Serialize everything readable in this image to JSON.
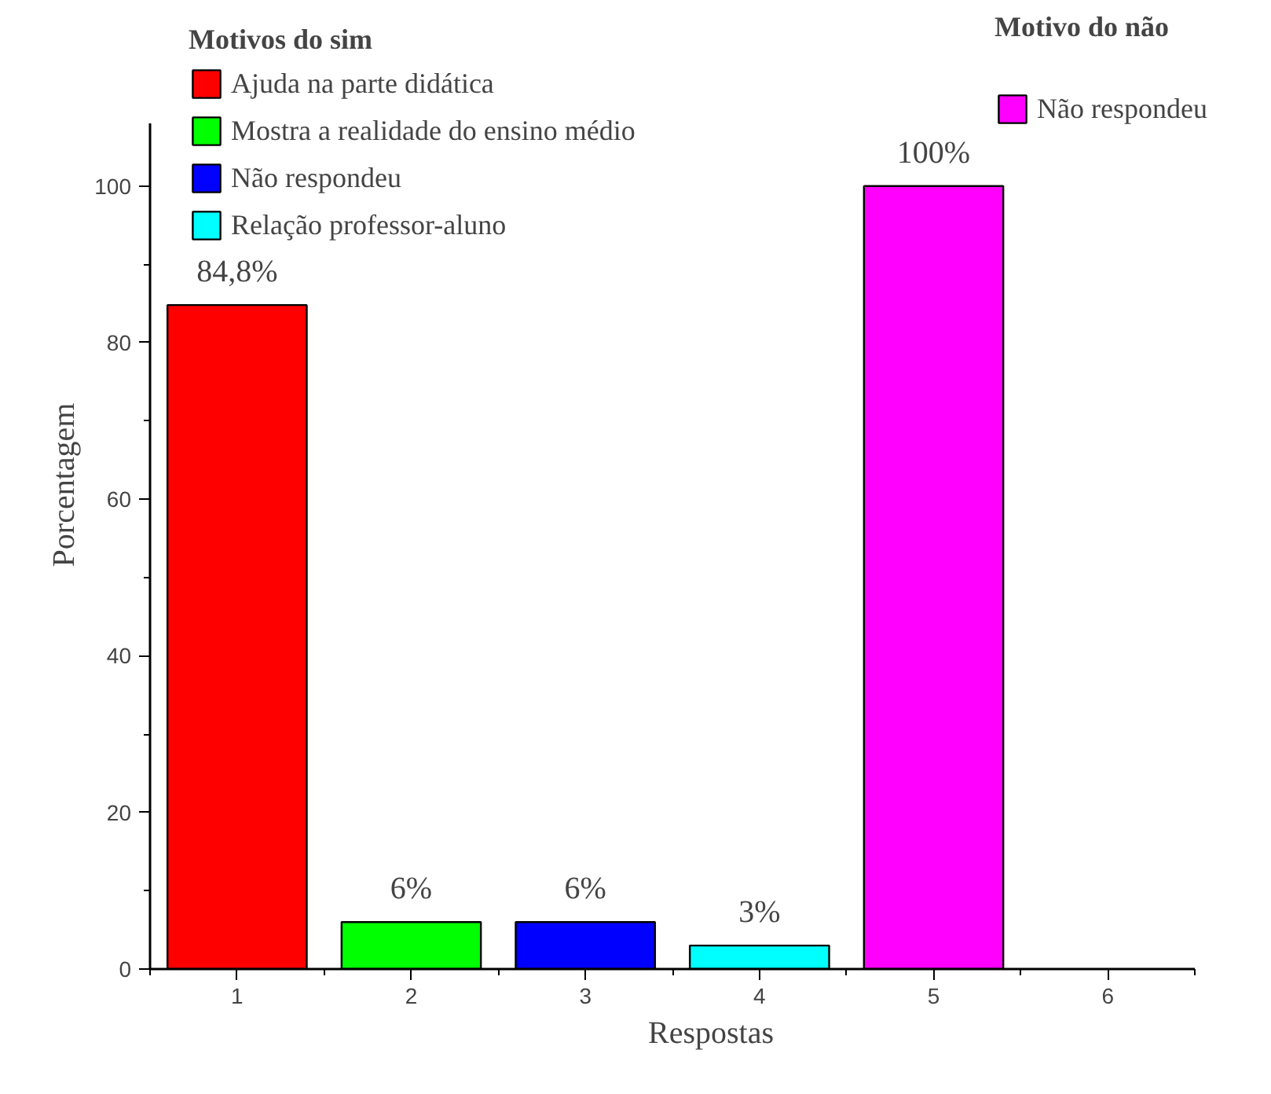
{
  "chart_data": {
    "type": "bar",
    "xlabel": "Respostas",
    "ylabel": "Porcentagem",
    "legend_title": [
      "Motivos do sim",
      "Motivo do não"
    ],
    "xlim": [
      0.5,
      6.5
    ],
    "xticks": [
      1,
      2,
      3,
      4,
      5,
      6
    ],
    "ylim": [
      0,
      108
    ],
    "yticks": [
      0,
      20,
      40,
      60,
      80,
      100
    ],
    "grid": false,
    "legend": [
      "top left",
      "top right"
    ],
    "series": [
      {
        "name": "Ajuda na parte didática",
        "color": "#ff0000",
        "x": [
          1
        ],
        "values": [
          84.8
        ],
        "value_labels": [
          "84,8%"
        ]
      },
      {
        "name": "Mostra a realidade do ensino médio",
        "color": "#00ff00",
        "x": [
          2
        ],
        "values": [
          6
        ],
        "value_labels": [
          "6%"
        ]
      },
      {
        "name": "Não respondeu",
        "color": "#0000ff",
        "x": [
          3
        ],
        "values": [
          6
        ],
        "value_labels": [
          "6%"
        ]
      },
      {
        "name": "Relação professor-aluno",
        "color": "#00ffff",
        "x": [
          4
        ],
        "values": [
          3
        ],
        "value_labels": [
          "3%"
        ]
      },
      {
        "name": "Não respondeu",
        "color": "#ff00ff",
        "x": [
          5
        ],
        "values": [
          100
        ],
        "value_labels": [
          "100%"
        ]
      }
    ]
  }
}
